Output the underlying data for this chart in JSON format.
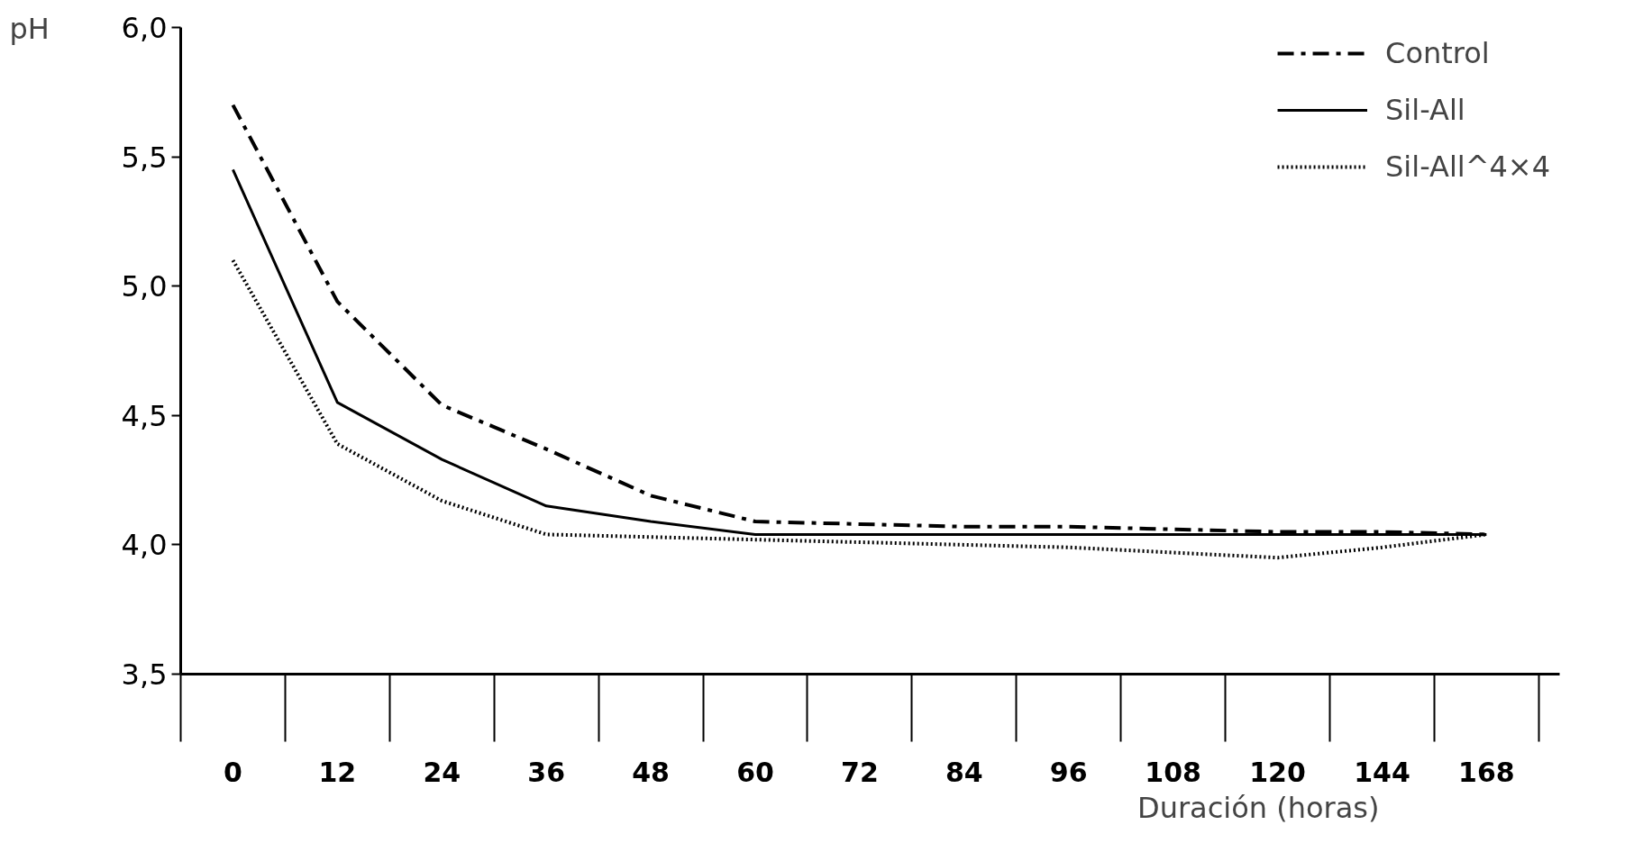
{
  "chart_data": {
    "type": "line",
    "xlabel": "Duración (horas)",
    "ylabel": "pH",
    "categories": [
      "0",
      "12",
      "24",
      "36",
      "48",
      "60",
      "72",
      "84",
      "96",
      "108",
      "120",
      "144",
      "168"
    ],
    "series": [
      {
        "name": "Control",
        "color": "#000000",
        "line_style": "dashdot",
        "values": [
          5.7,
          4.94,
          4.54,
          4.37,
          4.19,
          4.09,
          4.08,
          4.07,
          4.07,
          4.06,
          4.05,
          4.05,
          4.04
        ]
      },
      {
        "name": "Sil-All",
        "color": "#000000",
        "line_style": "solid",
        "values": [
          5.45,
          4.55,
          4.33,
          4.15,
          4.09,
          4.04,
          4.04,
          4.04,
          4.04,
          4.04,
          4.04,
          4.04,
          4.04
        ]
      },
      {
        "name": "Sil-All^4×4",
        "color": "#000000",
        "line_style": "dotted",
        "values": [
          5.1,
          4.39,
          4.17,
          4.04,
          4.03,
          4.02,
          4.01,
          4.0,
          3.99,
          3.97,
          3.95,
          3.99,
          4.04
        ]
      }
    ],
    "ylim": [
      3.5,
      6.0
    ],
    "yticks": [
      {
        "value": 3.5,
        "label": "3,5"
      },
      {
        "value": 4.0,
        "label": "4,0"
      },
      {
        "value": 4.5,
        "label": "4,5"
      },
      {
        "value": 5.0,
        "label": "5,0"
      },
      {
        "value": 5.5,
        "label": "5,5"
      },
      {
        "value": 6.0,
        "label": "6,0"
      }
    ],
    "grid": false,
    "legend": "top right",
    "marker": "none"
  }
}
